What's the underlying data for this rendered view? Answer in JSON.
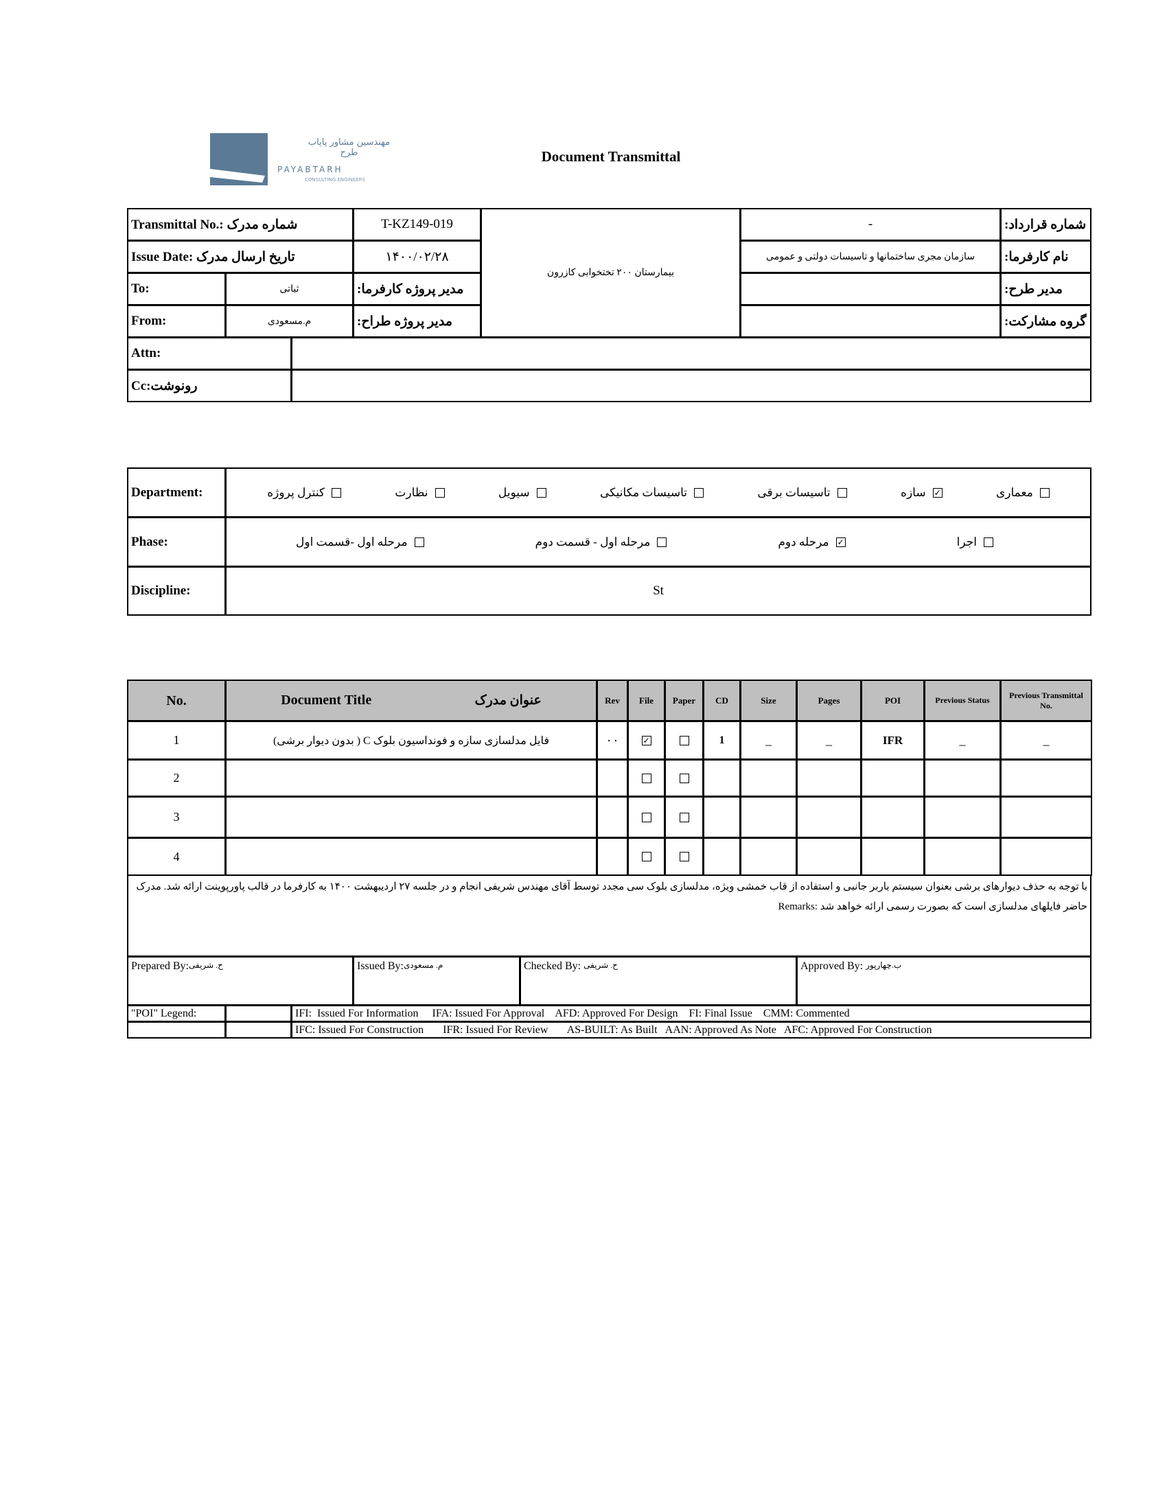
{
  "logo": {
    "fa": "مهندسین مشاور پایاب طرح",
    "en": "PAYABTARH",
    "sub": "CONSULTING ENGINEERS",
    "color": "#5b7a95"
  },
  "title": "Document Transmittal",
  "header": {
    "transmittal_label": "Transmittal No.: شماره مدرک",
    "transmittal_value": "T-KZ149-019",
    "issue_label": "Issue Date: تاریخ ارسال مدرک",
    "issue_value": "۱۴۰۰/۰۲/۲۸",
    "to_label": "To:",
    "to_value": "ثباتی",
    "client_pm_label": "مدیر پروژه کارفرما:",
    "from_label": "From:",
    "from_value": "م.مسعودی",
    "designer_pm_label": "مدیر پروژه طراح:",
    "project": "بیمارستان ۲۰۰ تختخوابی کازرون",
    "contract_label": "شماره قرارداد:",
    "contract_value": "-",
    "employer_label": "نام کارفرما:",
    "employer_value": "سازمان مجری ساختمانها و تاسیسات دولتی و عمومی",
    "plan_manager_label": "مدیر طرح:",
    "plan_manager_value": "",
    "partner_label": "گروه مشارکت:",
    "partner_value": "",
    "attn_label": "Attn:",
    "attn_value": "",
    "cc_label": "Cc:رونوشت",
    "cc_value": ""
  },
  "department": {
    "label": "Department:",
    "options": [
      {
        "label": "معماری",
        "checked": false
      },
      {
        "label": "سازه",
        "checked": true
      },
      {
        "label": "تاسیسات برقی",
        "checked": false
      },
      {
        "label": "تاسیسات مکانیکی",
        "checked": false
      },
      {
        "label": "سیویل",
        "checked": false
      },
      {
        "label": "نظارت",
        "checked": false
      },
      {
        "label": "کنترل پروژه",
        "checked": false
      }
    ]
  },
  "phase": {
    "label": "Phase:",
    "options": [
      {
        "label": "اجرا",
        "checked": false
      },
      {
        "label": "مرحله دوم",
        "checked": true
      },
      {
        "label": "مرحله اول - قسمت دوم",
        "checked": false
      },
      {
        "label": "مرحله اول -قسمت اول",
        "checked": false
      }
    ]
  },
  "discipline": {
    "label": "Discipline:",
    "value": "St"
  },
  "documents": {
    "headers": {
      "no": "No.",
      "title_en": "Document Title",
      "title_fa": "عنوان مدرک",
      "rev": "Rev",
      "file": "File",
      "paper": "Paper",
      "cd": "CD",
      "size": "Size",
      "pages": "Pages",
      "poi": "POI",
      "prev_status": "Previous Status",
      "prev_transmittal": "Previous Transmittal No."
    },
    "rows": [
      {
        "no": "1",
        "title": "فایل مدلسازی سازه و فونداسیون بلوک C ( بدون دیوار برشی)",
        "rev": "۰۰",
        "file": true,
        "paper": false,
        "cd": "1",
        "size": "_",
        "pages": "_",
        "poi": "IFR",
        "prev_status": "_",
        "prev_transmittal": "_"
      },
      {
        "no": "2",
        "title": "",
        "rev": "",
        "file": false,
        "paper": false,
        "cd": "",
        "size": "",
        "pages": "",
        "poi": "",
        "prev_status": "",
        "prev_transmittal": ""
      },
      {
        "no": "3",
        "title": "",
        "rev": "",
        "file": false,
        "paper": false,
        "cd": "",
        "size": "",
        "pages": "",
        "poi": "",
        "prev_status": "",
        "prev_transmittal": ""
      },
      {
        "no": "4",
        "title": "",
        "rev": "",
        "file": false,
        "paper": false,
        "cd": "",
        "size": "",
        "pages": "",
        "poi": "",
        "prev_status": "",
        "prev_transmittal": ""
      }
    ]
  },
  "remarks": {
    "label": "Remarks:",
    "text": "با توجه به حذف دیوارهای برشی بعنوان سیستم باربر جانبی و استفاده از قاب خمشی ویژه، مدلسازی بلوک سی مجدد توسط آقای مهندس شریفی انجام و در جلسه ۲۷ اردیبهشت ۱۴۰۰ به کارفرما در قالب پاورپوینت ارائه شد. مدرک حاضر فایلهای مدلسازی است که بصورت رسمی ارائه خواهد شد"
  },
  "signatures": {
    "prepared_label": "Prepared By:",
    "prepared_value": "ح. شریفی",
    "issued_label": "Issued By:",
    "issued_value": "م. مسعودی",
    "checked_label": "Checked By:",
    "checked_value": "ح. شریفی",
    "approved_label": "Approved By:",
    "approved_value": "ب.چهارپور"
  },
  "poi_legend": {
    "label": "\"POI\" Legend:",
    "line1": "IFI:  Issued For Information     IFA: Issued For Approval    AFD: Approved For Design    FI: Final Issue    CMM: Commented",
    "line2": "IFC: Issued For Construction       IFR: Issued For Review       AS-BUILT: As Built   AAN: Approved As Note   AFC: Approved For Construction"
  }
}
